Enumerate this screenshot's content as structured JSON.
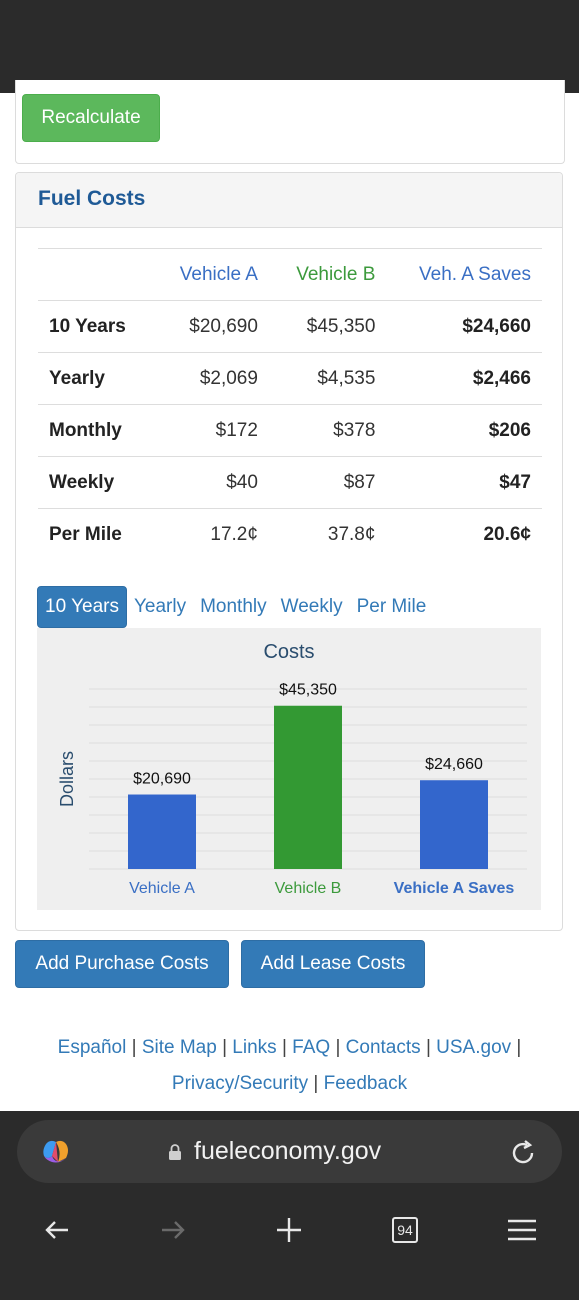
{
  "actions": {
    "recalculate_label": "Recalculate"
  },
  "fuel_costs": {
    "title": "Fuel Costs",
    "columns": [
      "Vehicle A",
      "Vehicle B",
      "Veh. A Saves"
    ],
    "rows": [
      {
        "label": "10 Years",
        "a": "$20,690",
        "b": "$45,350",
        "saves": "$24,660"
      },
      {
        "label": "Yearly",
        "a": "$2,069",
        "b": "$4,535",
        "saves": "$2,466"
      },
      {
        "label": "Monthly",
        "a": "$172",
        "b": "$378",
        "saves": "$206"
      },
      {
        "label": "Weekly",
        "a": "$40",
        "b": "$87",
        "saves": "$47"
      },
      {
        "label": "Per Mile",
        "a": "17.2¢",
        "b": "37.8¢",
        "saves": "20.6¢"
      }
    ]
  },
  "tabs": [
    {
      "label": "10 Years",
      "active": true
    },
    {
      "label": "Yearly",
      "active": false
    },
    {
      "label": "Monthly",
      "active": false
    },
    {
      "label": "Weekly",
      "active": false
    },
    {
      "label": "Per Mile",
      "active": false
    }
  ],
  "chart_data": {
    "type": "bar",
    "title": "Costs",
    "ylabel": "Dollars",
    "xlabel": "",
    "categories": [
      "Vehicle A",
      "Vehicle B",
      "Vehicle A Saves"
    ],
    "values": [
      20690,
      45350,
      24660
    ],
    "value_labels": [
      "$20,690",
      "$45,350",
      "$24,660"
    ],
    "bar_colors": [
      "#3366cc",
      "#339933",
      "#3366cc"
    ],
    "category_label_colors": [
      "#3a6fc4",
      "#3c9a3c",
      "#3a6fc4"
    ],
    "ylim": [
      0,
      50000
    ],
    "grid": true
  },
  "buttons": {
    "add_purchase": "Add Purchase Costs",
    "add_lease": "Add Lease Costs"
  },
  "footer": {
    "links": [
      "Español",
      "Site Map",
      "Links",
      "FAQ",
      "Contacts",
      "USA.gov",
      "Privacy/Security",
      "Feedback"
    ],
    "separator": "|"
  },
  "browser": {
    "url": "fueleconomy.gov",
    "tab_count": "94"
  },
  "colors": {
    "accent": "#337ab7",
    "green_button": "#5cb85c",
    "title_blue": "#1f5a96"
  }
}
